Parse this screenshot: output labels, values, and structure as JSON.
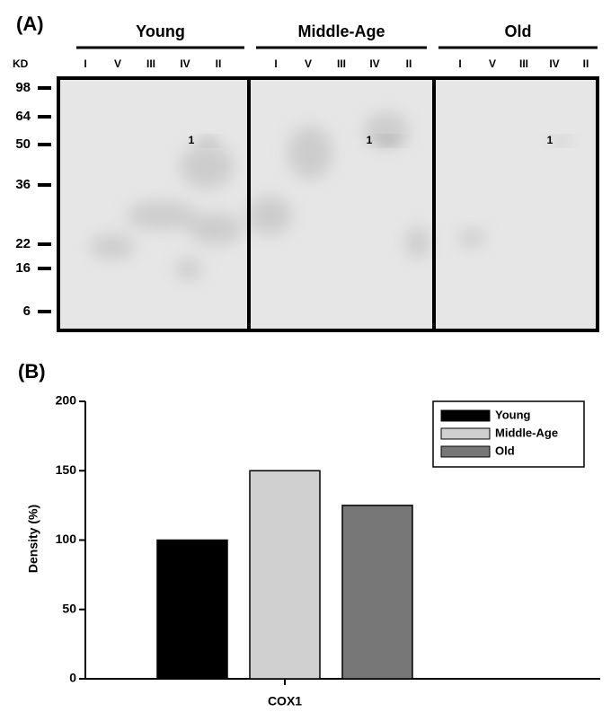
{
  "panel_a": {
    "label": "(A)",
    "kd_label": "KD",
    "groups": [
      {
        "name": "Young",
        "lanes": [
          "I",
          "V",
          "III",
          "IV",
          "II"
        ]
      },
      {
        "name": "Middle-Age",
        "lanes": [
          "I",
          "V",
          "III",
          "IV",
          "II"
        ]
      },
      {
        "name": "Old",
        "lanes": [
          "I",
          "V",
          "III",
          "IV",
          "II"
        ]
      }
    ],
    "markers": [
      98,
      64,
      50,
      36,
      22,
      16,
      6
    ],
    "spot_label": "1"
  },
  "chart_data": {
    "type": "bar",
    "panel_label": "(B)",
    "ylabel": "Density (%)",
    "categories": [
      "COX1"
    ],
    "series": [
      {
        "name": "Young",
        "color": "#000000",
        "values": [
          100
        ]
      },
      {
        "name": "Middle-Age",
        "color": "#d0d0d0",
        "values": [
          150
        ]
      },
      {
        "name": "Old",
        "color": "#777777",
        "values": [
          125
        ]
      }
    ],
    "ylim": [
      0,
      200
    ],
    "yticks": [
      0,
      50,
      100,
      150,
      200
    ],
    "legend": "upper right"
  }
}
